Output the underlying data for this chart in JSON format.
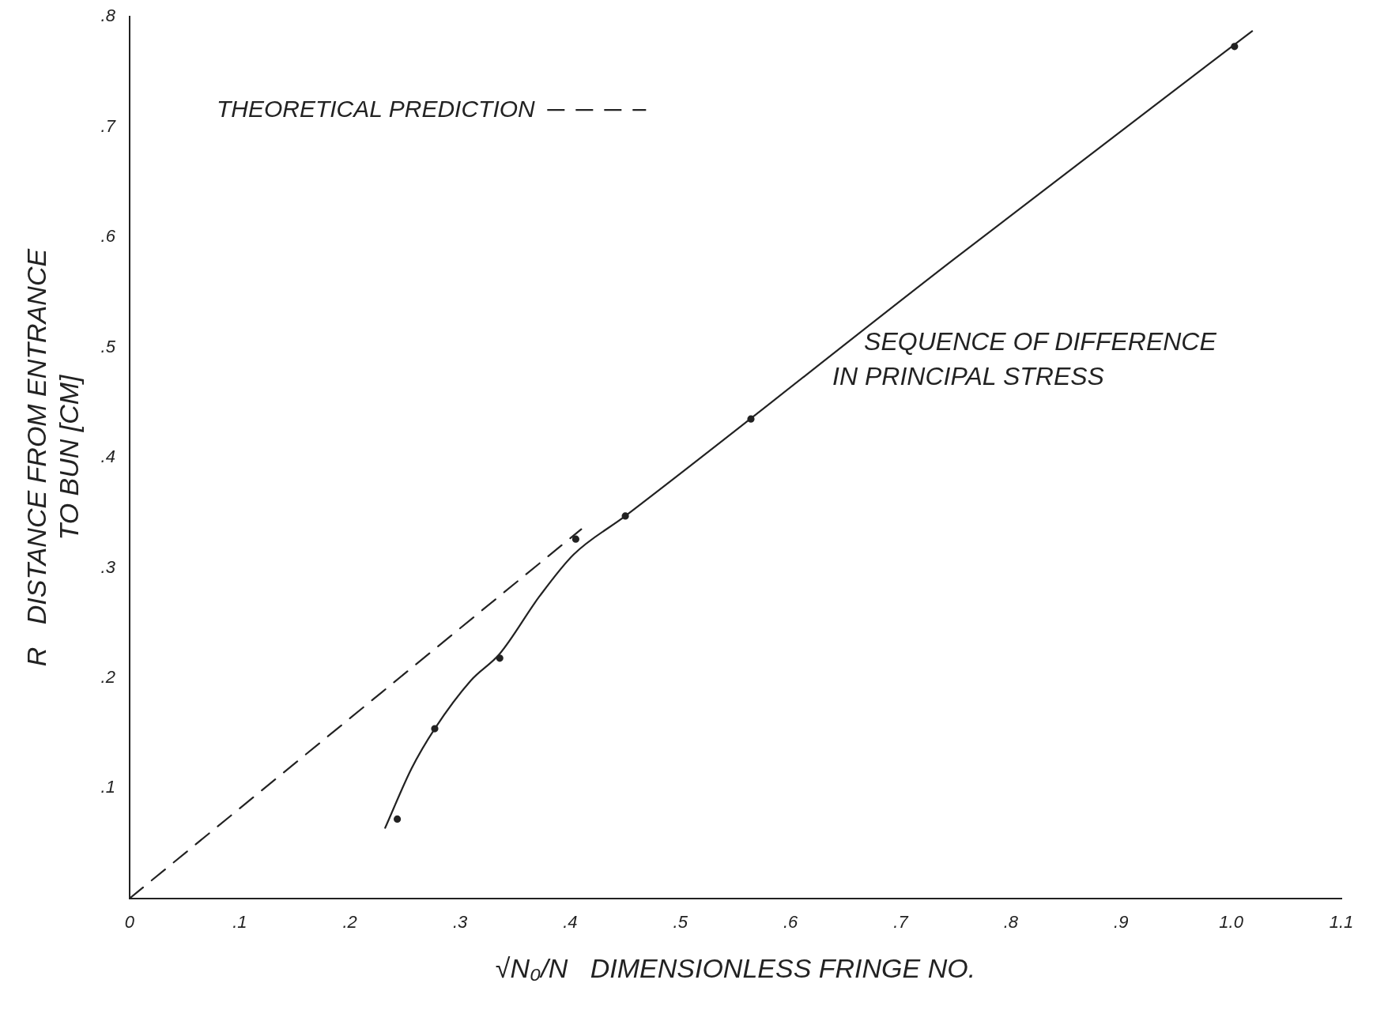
{
  "chart_data": {
    "type": "line",
    "xlabel": "√N₀/N   DIMENSIONLESS FRINGE NO.",
    "ylabel": "R   DISTANCE FROM ENTRANCE\nTO BUN [CM]",
    "xlim": [
      0,
      1.1
    ],
    "ylim": [
      0,
      0.8
    ],
    "xticks": [
      {
        "value": 0,
        "label": "0"
      },
      {
        "value": 0.1,
        "label": ".1"
      },
      {
        "value": 0.2,
        "label": ".2"
      },
      {
        "value": 0.3,
        "label": ".3"
      },
      {
        "value": 0.4,
        "label": ".4"
      },
      {
        "value": 0.5,
        "label": ".5"
      },
      {
        "value": 0.6,
        "label": ".6"
      },
      {
        "value": 0.7,
        "label": ".7"
      },
      {
        "value": 0.8,
        "label": ".8"
      },
      {
        "value": 0.9,
        "label": ".9"
      },
      {
        "value": 1.0,
        "label": "1.0"
      },
      {
        "value": 1.1,
        "label": "1.1"
      }
    ],
    "yticks": [
      {
        "value": 0,
        "label": null
      },
      {
        "value": 0.1,
        "label": ".1"
      },
      {
        "value": 0.2,
        "label": ".2"
      },
      {
        "value": 0.3,
        "label": ".3"
      },
      {
        "value": 0.4,
        "label": ".4"
      },
      {
        "value": 0.5,
        "label": ".5"
      },
      {
        "value": 0.6,
        "label": ".6"
      },
      {
        "value": 0.7,
        "label": ".7"
      },
      {
        "value": 0.8,
        "label": ".8"
      }
    ],
    "grid": false,
    "legend": "top left",
    "annotations": [
      "SEQUENCE OF DIFFERENCE\nIN PRINCIPAL STRESS"
    ],
    "series": [
      {
        "name": "THEORETICAL PREDICTION",
        "type": "line",
        "color": "#222222",
        "line_style": "dashed",
        "marker": "none",
        "x": [
          0,
          0.41
        ],
        "values": [
          0,
          0.335
        ]
      },
      {
        "type": "line",
        "color": "#222222",
        "line_style": "solid",
        "marker": "none",
        "x": [
          0.232,
          0.256,
          0.277,
          0.31,
          0.336,
          0.372,
          0.403,
          0.45,
          0.747,
          1.019
        ],
        "values": [
          0.064,
          0.118,
          0.154,
          0.198,
          0.222,
          0.274,
          0.312,
          0.347,
          0.579,
          0.787
        ]
      },
      {
        "type": "scatter",
        "color": "#222222",
        "marker": "circle",
        "x": [
          0.243,
          0.277,
          0.336,
          0.405,
          0.45,
          0.564,
          1.003
        ],
        "values": [
          0.072,
          0.154,
          0.218,
          0.326,
          0.347,
          0.435,
          0.773
        ]
      }
    ]
  }
}
